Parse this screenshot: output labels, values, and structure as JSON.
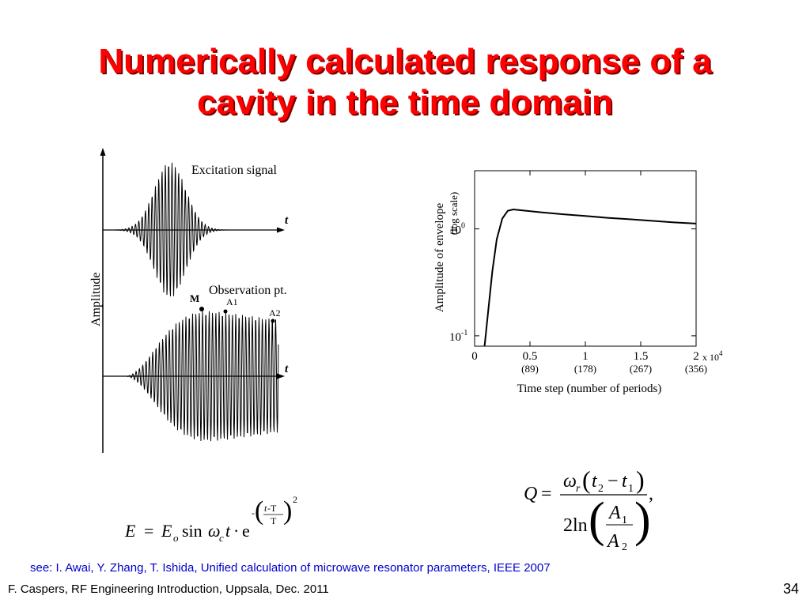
{
  "slide": {
    "title_line1": "Numerically calculated response of a",
    "title_line2": "cavity in the time domain",
    "reference": "see: I. Awai, Y. Zhang, T. Ishida, Unified calculation of microwave resonator parameters, IEEE 2007",
    "footer": "F. Caspers, RF Engineering Introduction, Uppsala, Dec. 2011",
    "page_number": "34"
  },
  "left_figure": {
    "y_axis_label": "Amplitude",
    "excitation_label": "Excitation signal",
    "observation_label": "Observation pt.",
    "time_axis_label": "t",
    "marker_m": "M",
    "marker_a1": "A1",
    "marker_a2": "A2"
  },
  "right_chart": {
    "type": "line",
    "ylabel_line1": "Amplitude of envelope",
    "ylabel_line2": "(log scale)",
    "xlabel": "Time step (number of periods)",
    "y_scale": "log",
    "y_ticks": [
      {
        "value": 1,
        "base": "10",
        "exp": "0"
      },
      {
        "value": 0.1,
        "base": "10",
        "exp": "-1"
      }
    ],
    "x_ticks": [
      {
        "value": 0,
        "label": "0",
        "sub": ""
      },
      {
        "value": 0.5,
        "label": "0.5",
        "sub": "(89)"
      },
      {
        "value": 1,
        "label": "1",
        "sub": "(178)"
      },
      {
        "value": 1.5,
        "label": "1.5",
        "sub": "(267)"
      },
      {
        "value": 2,
        "label": "2",
        "sub": "(356)"
      }
    ],
    "x_multiplier_base": "x 10",
    "x_multiplier_exp": "4",
    "xlim": [
      0,
      2
    ],
    "ylim": [
      0.08,
      3.5
    ],
    "series": [
      {
        "x": [
          0.09,
          0.12,
          0.16,
          0.2,
          0.25,
          0.3,
          0.35,
          0.4,
          0.6,
          0.8,
          1.0,
          1.2,
          1.4,
          1.6,
          1.8,
          2.0
        ],
        "y": [
          0.08,
          0.16,
          0.4,
          0.8,
          1.25,
          1.48,
          1.52,
          1.5,
          1.43,
          1.37,
          1.32,
          1.27,
          1.23,
          1.19,
          1.15,
          1.12
        ]
      }
    ]
  },
  "formulas": {
    "excitation": {
      "E": "E",
      "eq": "=",
      "E0": "E",
      "sub0": "o",
      "sin": "sin",
      "omega": "ω",
      "subc": "c",
      "t": "t",
      "dot": "·",
      "e": "e",
      "minus": "-",
      "t_exp": "t",
      "minusT": "-T",
      "T": "T",
      "two": "2"
    },
    "q_factor": {
      "Q": "Q",
      "eq": "=",
      "omega": "ω",
      "subr": "r",
      "t2": "t",
      "sub2": "2",
      "minus": "−",
      "t1": "t",
      "sub1": "1",
      "two": "2",
      "ln": "ln",
      "A1": "A",
      "subA1": "1",
      "A2": "A",
      "subA2": "2",
      "comma": ","
    }
  }
}
